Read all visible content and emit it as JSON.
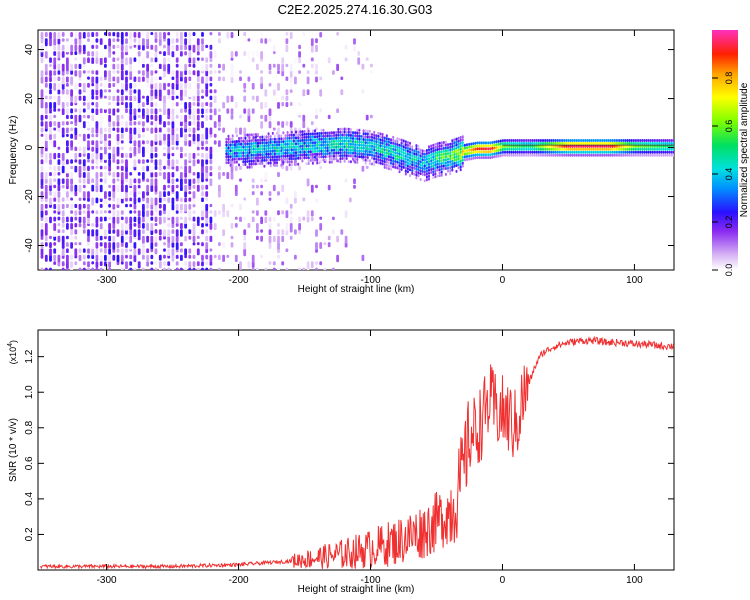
{
  "title": "C2E2.2025.274.16.30.G03",
  "chart_data": [
    {
      "type": "heatmap",
      "xlabel": "Height of straight line (km)",
      "ylabel": "Frequency (Hz)",
      "xlim": [
        -352,
        130
      ],
      "ylim": [
        -50,
        48
      ],
      "xticks": [
        -300,
        -200,
        -100,
        0,
        100
      ],
      "yticks": [
        -40,
        -20,
        0,
        20,
        40
      ],
      "colorbar": {
        "label": "Normalized spectral amplitude",
        "range": [
          0,
          1
        ],
        "ticks": [
          "0.0",
          "0.2",
          "0.4",
          "0.6",
          "0.8"
        ]
      },
      "ridge": {
        "x": [
          -210,
          -180,
          -150,
          -120,
          -100,
          -80,
          -60,
          -50,
          -40,
          -30,
          -20,
          -10,
          0,
          20,
          50,
          80,
          100,
          130
        ],
        "frequency": [
          -1,
          0,
          1,
          2,
          1,
          -2,
          -6,
          -4,
          -3,
          -1,
          0,
          0,
          1,
          1,
          1,
          1,
          1,
          1
        ],
        "amplitude": [
          0.35,
          0.4,
          0.4,
          0.45,
          0.4,
          0.45,
          0.35,
          0.5,
          0.55,
          0.7,
          0.9,
          0.95,
          0.6,
          0.5,
          0.95,
          0.95,
          0.6,
          0.5
        ]
      }
    },
    {
      "type": "line",
      "xlabel": "Height of straight line (km)",
      "ylabel": "SNR (10 * v/v)",
      "multiplier": "(x10",
      "multiplier_exp": "4",
      "xlim": [
        -352,
        130
      ],
      "ylim": [
        0,
        1.35
      ],
      "xticks": [
        -300,
        -200,
        -100,
        0,
        100
      ],
      "yticks": [
        0.2,
        0.4,
        0.6,
        0.8,
        1.0,
        1.2
      ],
      "series": [
        {
          "color": "#f03030",
          "x": [
            -350,
            -300,
            -250,
            -200,
            -180,
            -160,
            -140,
            -120,
            -100,
            -80,
            -60,
            -50,
            -40,
            -35,
            -30,
            -25,
            -20,
            -15,
            -10,
            -5,
            0,
            5,
            10,
            15,
            20,
            25,
            30,
            40,
            50,
            60,
            70,
            80,
            90,
            100,
            110,
            120,
            130
          ],
          "y": [
            0.02,
            0.02,
            0.02,
            0.03,
            0.04,
            0.05,
            0.07,
            0.09,
            0.12,
            0.16,
            0.22,
            0.27,
            0.33,
            0.4,
            0.55,
            0.75,
            0.78,
            0.85,
            0.95,
            0.9,
            0.88,
            0.85,
            0.8,
            0.95,
            1.05,
            1.15,
            1.22,
            1.26,
            1.28,
            1.29,
            1.29,
            1.28,
            1.28,
            1.27,
            1.27,
            1.26,
            1.26
          ]
        }
      ]
    }
  ]
}
